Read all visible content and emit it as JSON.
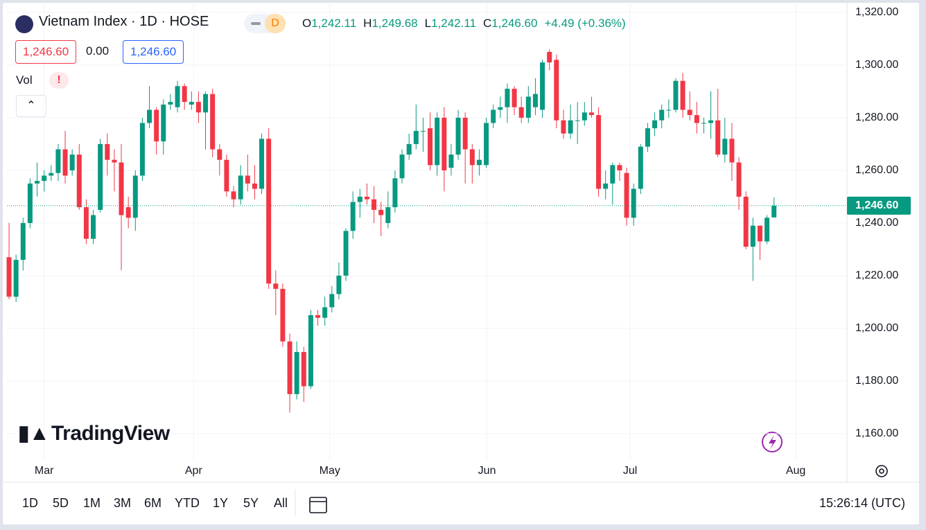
{
  "header": {
    "title": "Vietnam Index · 1D · HOSE",
    "badge": "D",
    "ohlc": [
      {
        "key": "O",
        "text": "1,242.11"
      },
      {
        "key": "H",
        "text": "1,249.68"
      },
      {
        "key": "L",
        "text": "1,242.11"
      },
      {
        "key": "C",
        "text": "1,246.60"
      }
    ],
    "change": "+4.49 (+0.36%)",
    "quote": {
      "bid": "1,246.60",
      "spread": "0.00",
      "ask": "1,246.60"
    },
    "indicator": "Vol",
    "warning": "!"
  },
  "brand": "TradingView",
  "toolbar": {
    "ranges": [
      "1D",
      "5D",
      "1M",
      "3M",
      "6M",
      "YTD",
      "1Y",
      "5Y",
      "All"
    ],
    "clock": "15:26:14 (UTC)"
  },
  "chart_data": {
    "type": "candlestick",
    "open": [
      1227,
      1212,
      1226,
      1240,
      1255,
      1256,
      1258,
      1259,
      1268,
      1260,
      1266,
      1246,
      1234,
      1245,
      1270,
      1264,
      1263,
      1246,
      1242,
      1258,
      1278,
      1283,
      1271,
      1285,
      1284,
      1292,
      1285,
      1286,
      1282,
      1289,
      1268,
      1264,
      1252,
      1249,
      1258,
      1255,
      1253,
      1272,
      1217,
      1215,
      1195,
      1175,
      1191,
      1178,
      1205,
      1204,
      1208,
      1213,
      1220,
      1237,
      1248,
      1250,
      1249,
      1245,
      1240,
      1246,
      1257,
      1266,
      1270,
      1275,
      1276,
      1262,
      1280,
      1261,
      1266,
      1280,
      1268,
      1262,
      1262,
      1278,
      1283,
      1284,
      1291,
      1284,
      1280,
      1284,
      1283,
      1305,
      1302,
      1279,
      1274,
      1279,
      1279,
      1282,
      1281,
      1253,
      1255,
      1262,
      1259,
      1242,
      1253,
      1269,
      1276,
      1279,
      1283,
      1283,
      1294,
      1283,
      1281,
      1278,
      1278,
      1279,
      1266,
      1272,
      1263,
      1250,
      1231,
      1239,
      1233,
      1242.11
    ],
    "high": [
      1240,
      1228,
      1242,
      1257,
      1263,
      1260,
      1262,
      1270,
      1275,
      1268,
      1270,
      1249,
      1245,
      1272,
      1274,
      1268,
      1270,
      1250,
      1260,
      1280,
      1292,
      1284,
      1287,
      1289,
      1294,
      1293,
      1290,
      1290,
      1290,
      1291,
      1270,
      1266,
      1254,
      1262,
      1266,
      1262,
      1274,
      1276,
      1222,
      1217,
      1198,
      1195,
      1193,
      1207,
      1207,
      1212,
      1216,
      1225,
      1238,
      1252,
      1253,
      1255,
      1254,
      1248,
      1252,
      1260,
      1268,
      1274,
      1285,
      1280,
      1282,
      1282,
      1284,
      1270,
      1283,
      1282,
      1270,
      1268,
      1280,
      1285,
      1288,
      1293,
      1292,
      1288,
      1292,
      1295,
      1302,
      1306,
      1304,
      1283,
      1285,
      1286,
      1286,
      1288,
      1284,
      1260,
      1263,
      1263,
      1261,
      1255,
      1270,
      1278,
      1282,
      1285,
      1287,
      1295,
      1297,
      1290,
      1286,
      1280,
      1290,
      1291,
      1280,
      1278,
      1265,
      1252,
      1242,
      1239,
      1243,
      1249.68
    ],
    "low": [
      1211,
      1210,
      1222,
      1238,
      1250,
      1252,
      1256,
      1256,
      1255,
      1258,
      1245,
      1232,
      1232,
      1244,
      1258,
      1252,
      1222,
      1238,
      1237,
      1256,
      1276,
      1266,
      1266,
      1283,
      1282,
      1283,
      1283,
      1278,
      1268,
      1265,
      1258,
      1250,
      1246,
      1247,
      1252,
      1249,
      1251,
      1215,
      1205,
      1193,
      1168,
      1173,
      1172,
      1177,
      1201,
      1201,
      1206,
      1211,
      1218,
      1234,
      1242,
      1247,
      1240,
      1235,
      1238,
      1244,
      1255,
      1264,
      1268,
      1267,
      1260,
      1258,
      1252,
      1258,
      1264,
      1255,
      1255,
      1258,
      1261,
      1276,
      1280,
      1278,
      1281,
      1278,
      1278,
      1281,
      1280,
      1298,
      1276,
      1272,
      1272,
      1270,
      1277,
      1280,
      1250,
      1249,
      1247,
      1256,
      1239,
      1239,
      1251,
      1267,
      1273,
      1276,
      1280,
      1282,
      1280,
      1279,
      1274,
      1274,
      1272,
      1265,
      1263,
      1256,
      1245,
      1230,
      1218,
      1226,
      1232,
      1242.11
    ],
    "close": [
      1212,
      1226,
      1240,
      1255,
      1256,
      1258,
      1259,
      1268,
      1258,
      1266,
      1246,
      1234,
      1243,
      1270,
      1264,
      1263,
      1243,
      1242,
      1258,
      1278,
      1283,
      1271,
      1285,
      1286,
      1292,
      1286,
      1286,
      1282,
      1289,
      1268,
      1264,
      1252,
      1249,
      1258,
      1255,
      1253,
      1272,
      1217,
      1215,
      1195,
      1175,
      1191,
      1178,
      1205,
      1204,
      1208,
      1213,
      1220,
      1237,
      1248,
      1250,
      1249,
      1245,
      1243,
      1246,
      1257,
      1266,
      1270,
      1275,
      1275,
      1262,
      1280,
      1260,
      1266,
      1280,
      1268,
      1262,
      1264,
      1278,
      1283,
      1284,
      1291,
      1284,
      1280,
      1288,
      1289,
      1301,
      1301,
      1279,
      1274,
      1279,
      1279,
      1282,
      1281,
      1253,
      1255,
      1262,
      1260,
      1242,
      1253,
      1269,
      1276,
      1279,
      1283,
      1283,
      1294,
      1283,
      1281,
      1278,
      1278,
      1279,
      1266,
      1272,
      1263,
      1250,
      1231,
      1239,
      1233,
      1242,
      1246.6
    ],
    "up_color": "#089981",
    "down_color": "#f23645",
    "last_price": {
      "value": 1246.6,
      "label": "1,246.60"
    },
    "xlim": [
      -0.3,
      119.4
    ],
    "xticks": [
      {
        "value": 5,
        "label": "Mar"
      },
      {
        "value": 26.3,
        "label": "Apr"
      },
      {
        "value": 45.7,
        "label": "May"
      },
      {
        "value": 68.1,
        "label": "Jun"
      },
      {
        "value": 88.5,
        "label": "Jul"
      },
      {
        "value": 112.1,
        "label": "Aug"
      }
    ],
    "ylim": [
      1149.7,
      1323.4
    ],
    "yticks": [
      {
        "value": 1160,
        "label": "1,160.00"
      },
      {
        "value": 1180,
        "label": "1,180.00"
      },
      {
        "value": 1200,
        "label": "1,200.00"
      },
      {
        "value": 1220,
        "label": "1,220.00"
      },
      {
        "value": 1240,
        "label": "1,240.00"
      },
      {
        "value": 1260,
        "label": "1,260.00"
      },
      {
        "value": 1280,
        "label": "1,280.00"
      },
      {
        "value": 1300,
        "label": "1,300.00"
      },
      {
        "value": 1320,
        "label": "1,320.00"
      }
    ],
    "grid": true
  }
}
